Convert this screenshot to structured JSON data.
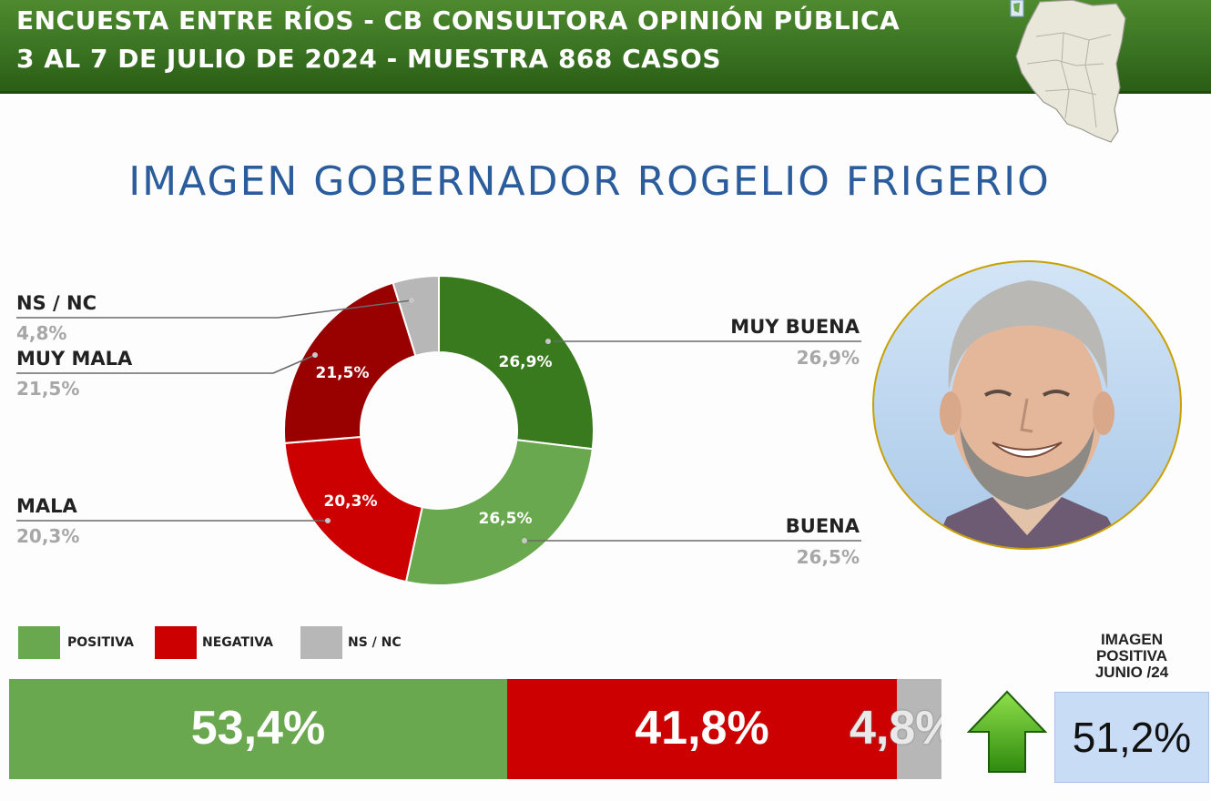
{
  "header": {
    "line1": "ENCUESTA ENTRE RÍOS - CB CONSULTORA OPINIÓN PÚBLICA",
    "line2": "3 AL 7 DE JULIO DE 2024 - MUESTRA 868 CASOS"
  },
  "chart_data": [
    {
      "type": "pie",
      "title": "IMAGEN GOBERNADOR  ROGELIO FRIGERIO",
      "donut": true,
      "slices": [
        {
          "label": "MUY BUENA",
          "value": 26.9,
          "display": "26,9%",
          "color": "#3a7a1f"
        },
        {
          "label": "BUENA",
          "value": 26.5,
          "display": "26,5%",
          "color": "#6aa84f"
        },
        {
          "label": "MALA",
          "value": 20.3,
          "display": "20,3%",
          "color": "#cc0000"
        },
        {
          "label": "MUY MALA",
          "value": 21.5,
          "display": "21,5%",
          "color": "#990000"
        },
        {
          "label": "NS / NC",
          "value": 4.8,
          "display": "4,8%",
          "color": "#b7b7b7"
        }
      ]
    },
    {
      "type": "bar",
      "stacked": true,
      "orientation": "horizontal",
      "legend": [
        {
          "label": "POSITIVA",
          "color": "#6aa84f"
        },
        {
          "label": "NEGATIVA",
          "color": "#cc0000"
        },
        {
          "label": "NS / NC",
          "color": "#b7b7b7"
        }
      ],
      "segments": [
        {
          "label": "POSITIVA",
          "value": 53.4,
          "display": "53,4%",
          "color": "#6aa84f"
        },
        {
          "label": "NEGATIVA",
          "value": 41.8,
          "display": "41,8%",
          "color": "#cc0000"
        },
        {
          "label": "NS / NC",
          "value": 4.8,
          "display": "4,8%",
          "color": "#b7b7b7"
        }
      ]
    }
  ],
  "previous": {
    "title_lines": [
      "IMAGEN",
      "POSITIVA",
      "JUNIO /24"
    ],
    "value": "51,2%",
    "arrow": "up-arrow-icon",
    "arrow_color": "#4caf1a"
  },
  "photo": {
    "icon": "portrait-photo",
    "ring_color": "#c9a000"
  }
}
